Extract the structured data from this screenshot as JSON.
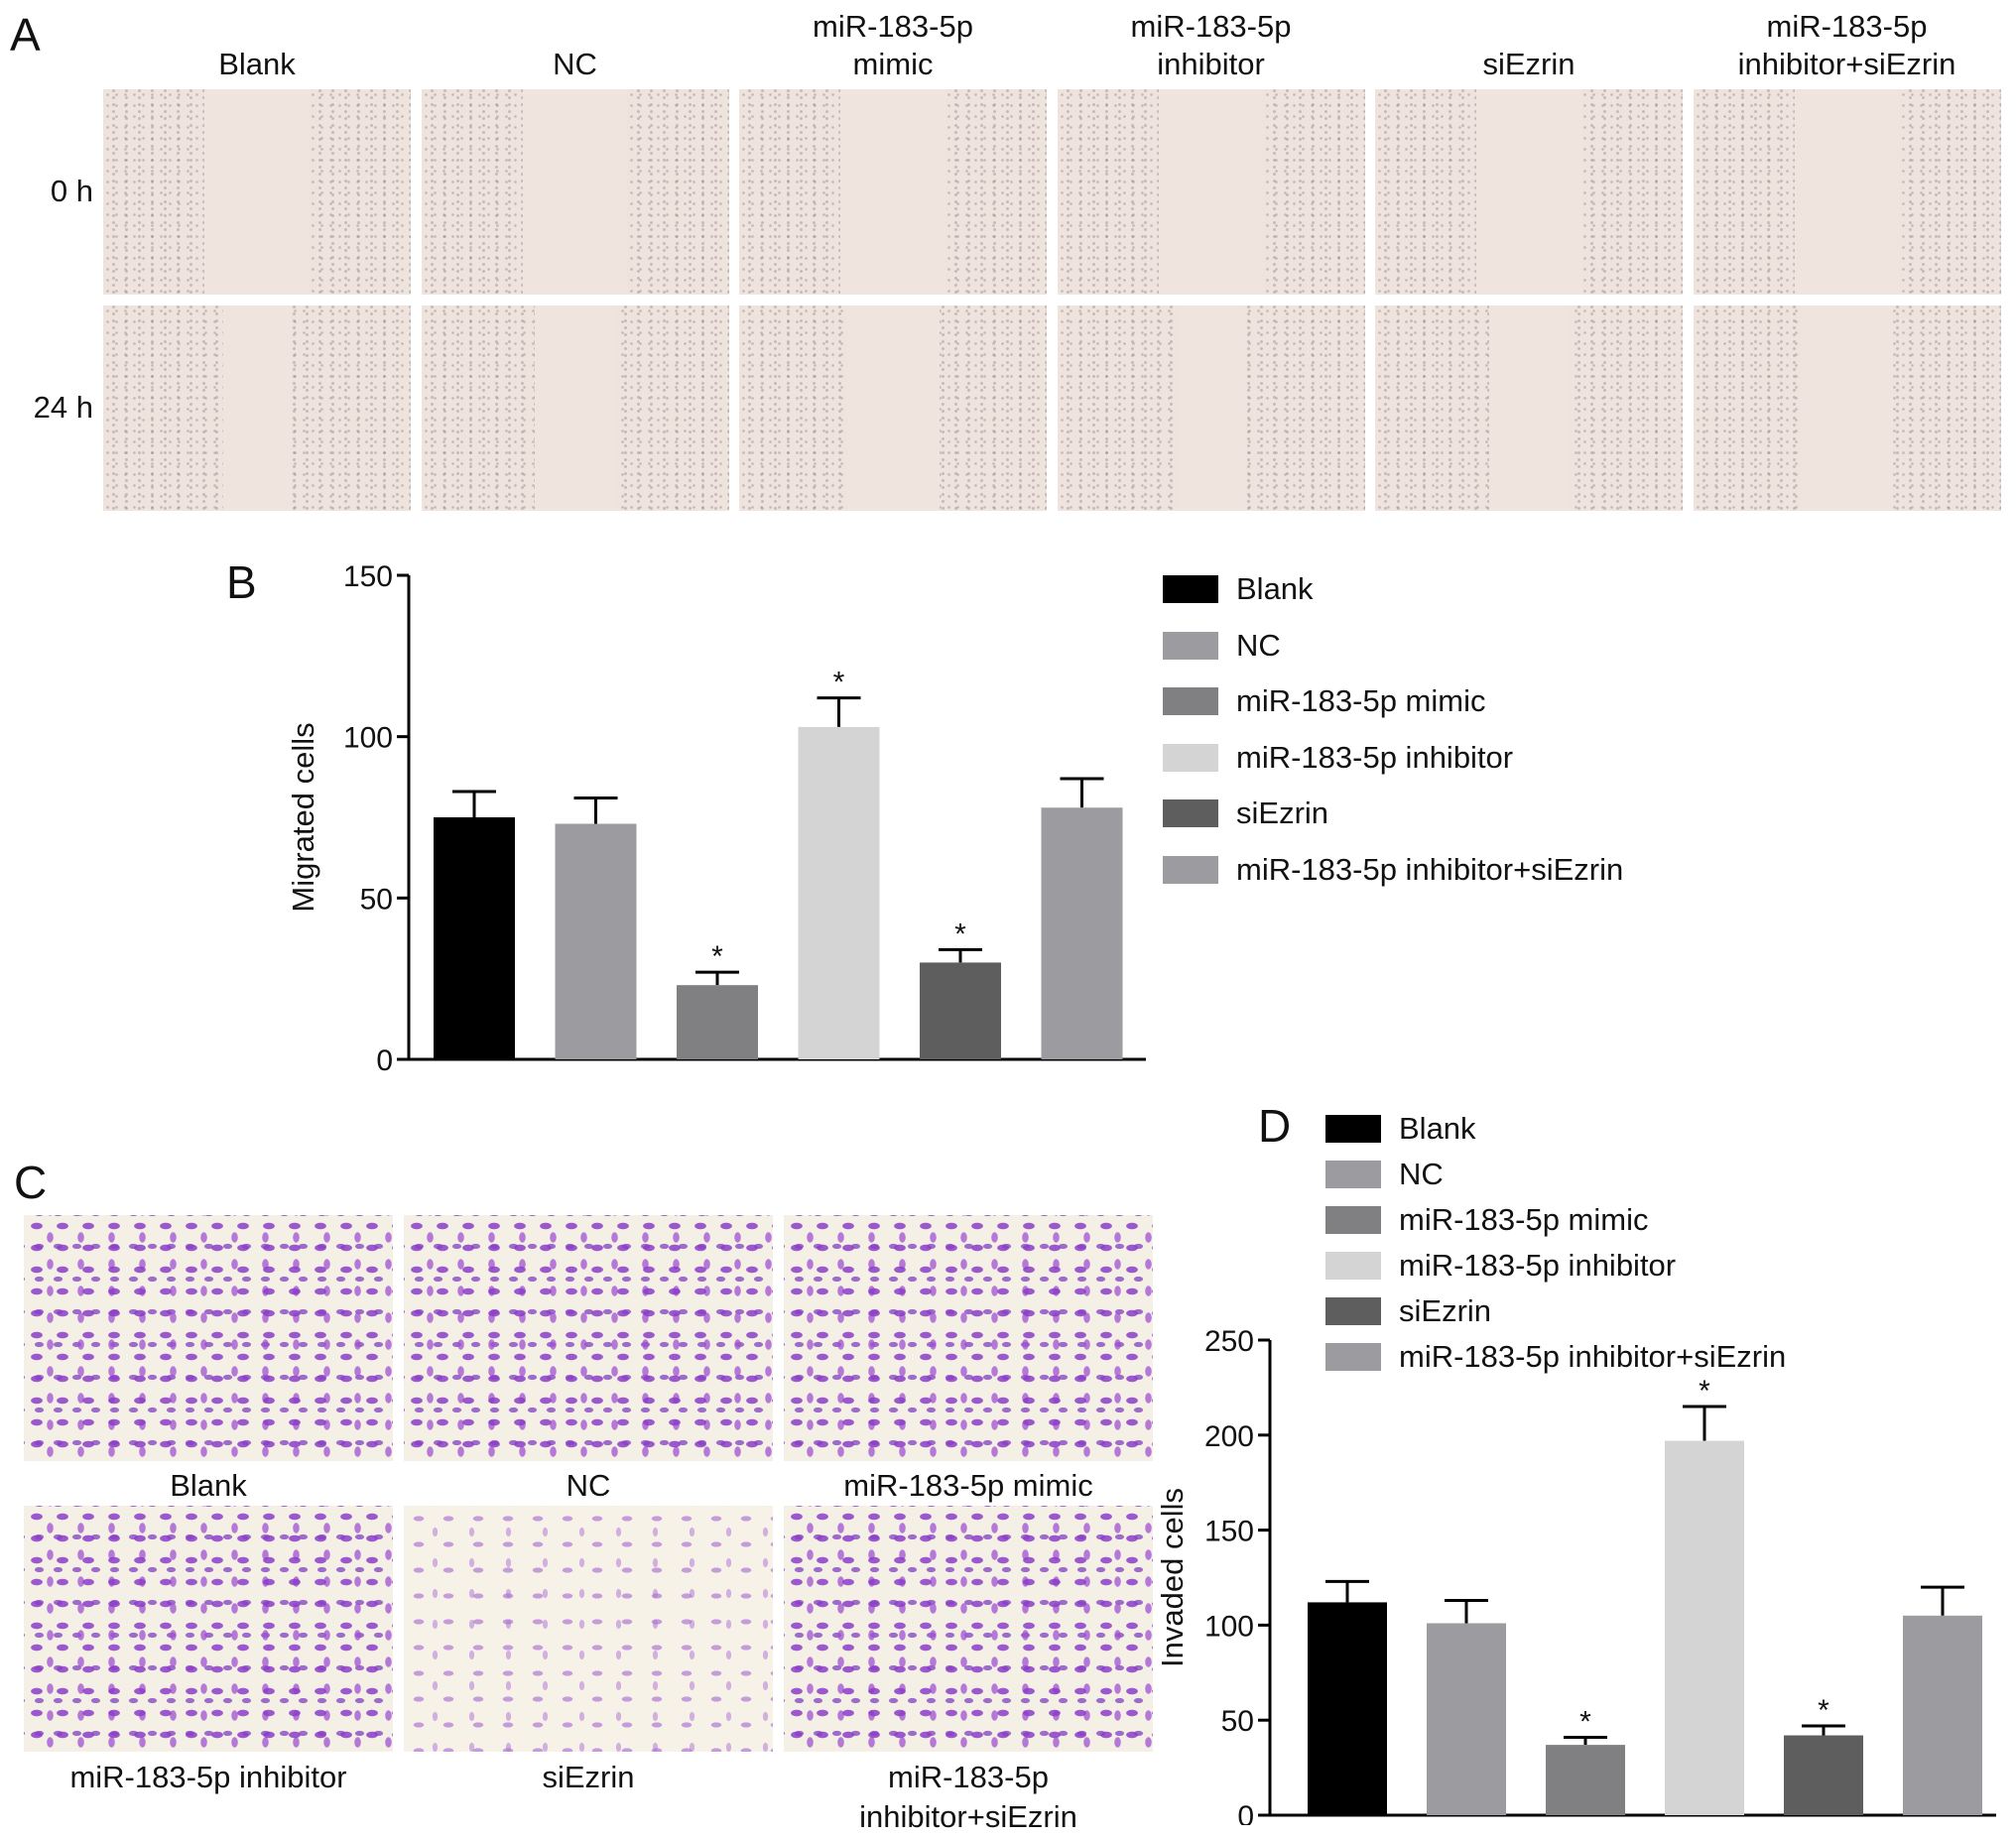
{
  "panels": {
    "A": {
      "letter": "A",
      "columns": [
        "Blank",
        "NC",
        "miR-183-5p\nmimic",
        "miR-183-5p\ninhibitor",
        "siEzrin",
        "miR-183-5p\ninhibitor+siEzrin"
      ],
      "rows": [
        "0 h",
        "24 h"
      ]
    },
    "B": {
      "letter": "B"
    },
    "C": {
      "letter": "C",
      "labels": [
        "Blank",
        "NC",
        "miR-183-5p mimic",
        "miR-183-5p inhibitor",
        "siEzrin",
        "miR-183-5p\ninhibitor+siEzrin"
      ]
    },
    "D": {
      "letter": "D"
    }
  },
  "colors": {
    "Blank": "#000000",
    "NC": "#9b9ba0",
    "miR-183-5p mimic": "#808082",
    "miR-183-5p inhibitor": "#d4d4d4",
    "siEzrin": "#5e5e5f",
    "miR-183-5p inhibitor+siEzrin": "#9b9ba0"
  },
  "chart_data": [
    {
      "panel": "B",
      "type": "bar",
      "categories": [
        "Blank",
        "NC",
        "miR-183-5p mimic",
        "miR-183-5p inhibitor",
        "siEzrin",
        "miR-183-5p inhibitor+siEzrin"
      ],
      "values": [
        75,
        73,
        23,
        103,
        30,
        78
      ],
      "errors": [
        8,
        8,
        4,
        9,
        4,
        9
      ],
      "significant": [
        "",
        "",
        "*",
        "*",
        "*",
        ""
      ],
      "ylabel": "Migrated cells",
      "ylim": [
        0,
        150
      ],
      "yticks": [
        0,
        50,
        100,
        150
      ],
      "legend": [
        "Blank",
        "NC",
        "miR-183-5p mimic",
        "miR-183-5p inhibitor",
        "siEzrin",
        "miR-183-5p inhibitor+siEzrin"
      ],
      "legend_position": "right",
      "grid": false
    },
    {
      "panel": "D",
      "type": "bar",
      "categories": [
        "Blank",
        "NC",
        "miR-183-5p mimic",
        "miR-183-5p inhibitor",
        "siEzrin",
        "miR-183-5p inhibitor+siEzrin"
      ],
      "values": [
        112,
        101,
        37,
        197,
        42,
        105
      ],
      "errors": [
        11,
        12,
        4,
        18,
        5,
        15
      ],
      "significant": [
        "",
        "",
        "*",
        "*",
        "*",
        ""
      ],
      "ylabel": "Invaded cells",
      "ylim": [
        0,
        250
      ],
      "yticks": [
        0,
        50,
        100,
        150,
        200,
        250
      ],
      "legend": [
        "Blank",
        "NC",
        "miR-183-5p mimic",
        "miR-183-5p inhibitor",
        "siEzrin",
        "miR-183-5p inhibitor+siEzrin"
      ],
      "legend_position": "top",
      "grid": false
    }
  ]
}
